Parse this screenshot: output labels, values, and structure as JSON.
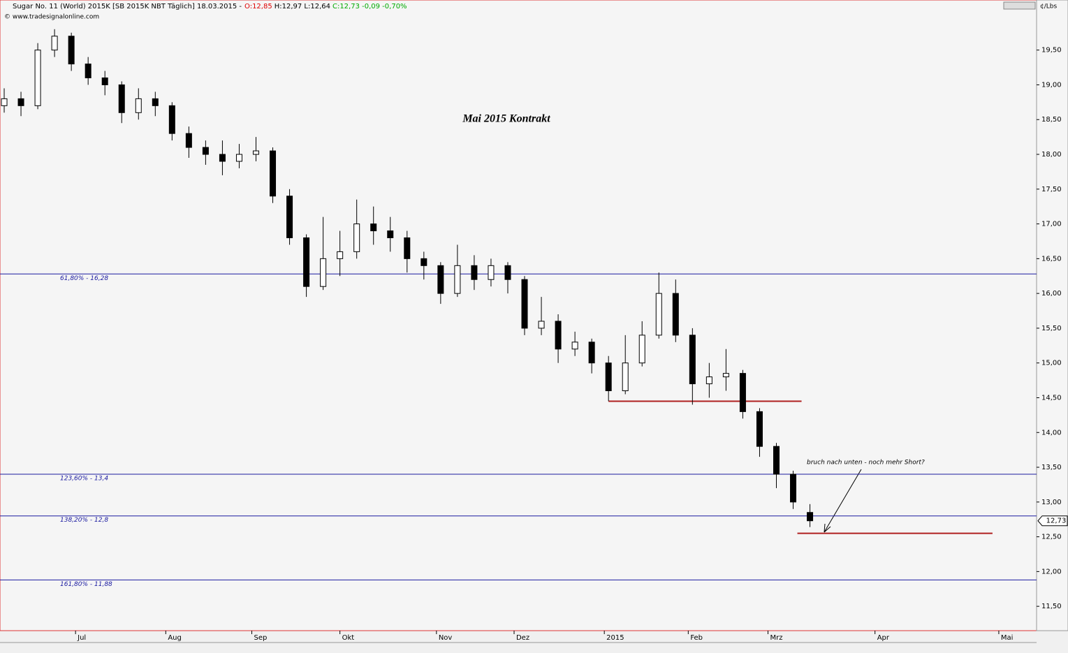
{
  "header": {
    "instrument": "Sugar No. 11 (World) 2015K [SB 2015K NBT  Täglich] 18.03.2015 -",
    "open": "O:12,85",
    "high_low": "H:12,97 L:12,64",
    "close": "C:12,73 -0,09 -0,70%",
    "copyright": "© www.tradesignalonline.com"
  },
  "chart_data": {
    "type": "candlestick",
    "title": "Mai 2015 Kontrakt",
    "y_unit": "¢/Lbs",
    "last_price_label": "12,73",
    "xlim": [
      0,
      247
    ],
    "xticks": [
      {
        "value": 18,
        "label": "Jul"
      },
      {
        "value": 39.5,
        "label": "Aug"
      },
      {
        "value": 60,
        "label": "Sep"
      },
      {
        "value": 81,
        "label": "Okt"
      },
      {
        "value": 104,
        "label": "Nov"
      },
      {
        "value": 122.5,
        "label": "Dez"
      },
      {
        "value": 144,
        "label": "2015"
      },
      {
        "value": 164,
        "label": "Feb"
      },
      {
        "value": 183,
        "label": "Mrz"
      },
      {
        "value": 208.5,
        "label": "Apr"
      },
      {
        "value": 238,
        "label": "Mai"
      }
    ],
    "ylim": [
      11.15,
      20.22
    ],
    "yticks": [
      {
        "value": 11.5,
        "label": "11,50"
      },
      {
        "value": 12,
        "label": "12,00"
      },
      {
        "value": 12.5,
        "label": "12,50"
      },
      {
        "value": 13,
        "label": "13,00"
      },
      {
        "value": 13.5,
        "label": "13,50"
      },
      {
        "value": 14,
        "label": "14,00"
      },
      {
        "value": 14.5,
        "label": "14,50"
      },
      {
        "value": 15,
        "label": "15,00"
      },
      {
        "value": 15.5,
        "label": "15,50"
      },
      {
        "value": 16,
        "label": "16,00"
      },
      {
        "value": 16.5,
        "label": "16,50"
      },
      {
        "value": 17,
        "label": "17,00"
      },
      {
        "value": 17.5,
        "label": "17,50"
      },
      {
        "value": 18,
        "label": "18,00"
      },
      {
        "value": 18.5,
        "label": "18,50"
      },
      {
        "value": 19,
        "label": "19,00"
      },
      {
        "value": 19.5,
        "label": "19,50"
      }
    ],
    "x": [
      1,
      5,
      9,
      13,
      17,
      21,
      25,
      29,
      33,
      37,
      41,
      45,
      49,
      53,
      57,
      61,
      65,
      69,
      73,
      77,
      81,
      85,
      89,
      93,
      97,
      101,
      105,
      109,
      113,
      117,
      121,
      125,
      129,
      133,
      137,
      141,
      145,
      149,
      153,
      157,
      161,
      165,
      169,
      173,
      177,
      181,
      185,
      189,
      193
    ],
    "open": [
      18.7,
      18.8,
      18.7,
      19.5,
      19.7,
      19.3,
      19.1,
      19.0,
      18.6,
      18.8,
      18.7,
      18.3,
      18.1,
      18.0,
      17.9,
      18.0,
      18.05,
      17.4,
      16.8,
      16.1,
      16.5,
      16.6,
      17.0,
      16.9,
      16.8,
      16.5,
      16.4,
      16.0,
      16.4,
      16.2,
      16.4,
      16.2,
      15.5,
      15.6,
      15.2,
      15.3,
      15.0,
      14.6,
      15.0,
      15.4,
      16.0,
      15.4,
      14.7,
      14.8,
      14.85,
      14.3,
      13.8,
      13.4,
      12.85
    ],
    "high": [
      18.95,
      18.9,
      19.6,
      19.8,
      19.75,
      19.4,
      19.2,
      19.05,
      18.95,
      18.9,
      18.75,
      18.4,
      18.2,
      18.2,
      18.15,
      18.25,
      18.1,
      17.5,
      16.85,
      17.1,
      16.9,
      17.35,
      17.25,
      17.1,
      16.9,
      16.6,
      16.45,
      16.7,
      16.55,
      16.5,
      16.45,
      16.25,
      15.95,
      15.7,
      15.45,
      15.35,
      15.1,
      15.4,
      15.6,
      16.3,
      16.2,
      15.5,
      15.0,
      15.2,
      14.9,
      14.35,
      13.85,
      13.45,
      12.97
    ],
    "low": [
      18.6,
      18.55,
      18.65,
      19.4,
      19.2,
      19.0,
      18.85,
      18.45,
      18.5,
      18.55,
      18.2,
      17.95,
      17.85,
      17.7,
      17.8,
      17.9,
      17.3,
      16.7,
      15.95,
      16.05,
      16.25,
      16.5,
      16.7,
      16.6,
      16.3,
      16.2,
      15.85,
      15.95,
      16.05,
      16.1,
      16.0,
      15.4,
      15.4,
      15.0,
      15.1,
      14.85,
      14.45,
      14.55,
      14.95,
      15.35,
      15.3,
      14.4,
      14.5,
      14.6,
      14.2,
      13.65,
      13.2,
      12.9,
      12.64
    ],
    "close": [
      18.8,
      18.7,
      19.5,
      19.7,
      19.3,
      19.1,
      19.0,
      18.6,
      18.8,
      18.7,
      18.3,
      18.1,
      18.0,
      17.9,
      18.0,
      18.05,
      17.4,
      16.8,
      16.1,
      16.5,
      16.6,
      17.0,
      16.9,
      16.8,
      16.5,
      16.4,
      16.0,
      16.4,
      16.2,
      16.4,
      16.2,
      15.5,
      15.6,
      15.2,
      15.3,
      15.0,
      14.6,
      15.0,
      15.4,
      16.0,
      15.4,
      14.7,
      14.8,
      14.85,
      14.3,
      13.8,
      13.4,
      13.0,
      12.73
    ],
    "levels": [
      {
        "label": "61,80% - 16,28",
        "value": 16.28
      },
      {
        "label": "123,60% - 13,4",
        "value": 13.4
      },
      {
        "label": "138,20% - 12,8",
        "value": 12.8
      },
      {
        "label": "161,80% - 11,88",
        "value": 11.88
      }
    ],
    "level_color": "#1a1aa0",
    "support_lines": [
      {
        "value": 14.45,
        "x": [
          145,
          191
        ]
      },
      {
        "value": 12.55,
        "x": [
          190,
          236.5
        ]
      }
    ],
    "support_color": "#b02020",
    "annotation": "bruch nach unten - noch mehr Short?"
  }
}
